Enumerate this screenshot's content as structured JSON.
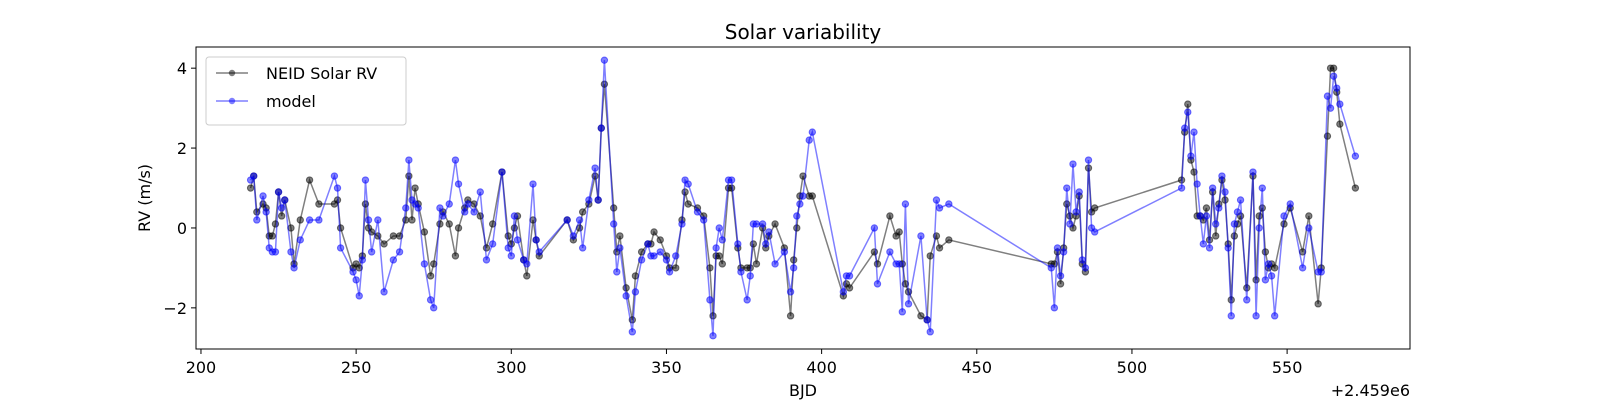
{
  "chart_data": {
    "type": "line",
    "title": "Solar variability",
    "xlabel": "BJD",
    "xoffset_label": "+2.459e6",
    "ylabel": "RV (m/s)",
    "xlim": [
      198.4,
      589.6
    ],
    "xticks": [
      200,
      250,
      300,
      350,
      400,
      450,
      500,
      550
    ],
    "ylim": [
      -3.03,
      4.53
    ],
    "yticks": [
      {
        "value": -2,
        "label": "−2"
      },
      0,
      2,
      4
    ],
    "legend": "upper left",
    "alpha": 0.5,
    "markers": true,
    "x": [
      216,
      217,
      218,
      220,
      221,
      222,
      223,
      224,
      225,
      226,
      227,
      229,
      230,
      232,
      235,
      238,
      243,
      244,
      245,
      249,
      250,
      251,
      252,
      253,
      254,
      255,
      257,
      259,
      262,
      264,
      266,
      267,
      268,
      269,
      270,
      272,
      274,
      275,
      277,
      278,
      280,
      282,
      283,
      285,
      286,
      288,
      290,
      292,
      294,
      297,
      299,
      300,
      301,
      302,
      304,
      305,
      307,
      308,
      309,
      318,
      320,
      322,
      323,
      325,
      327,
      328,
      329,
      330,
      333,
      334,
      335,
      337,
      339,
      340,
      342,
      344,
      345,
      346,
      348,
      350,
      351,
      353,
      355,
      356,
      357,
      360,
      362,
      364,
      365,
      366,
      367,
      368,
      370,
      371,
      373,
      374,
      376,
      377,
      378,
      379,
      381,
      382,
      383,
      385,
      388,
      390,
      391,
      392,
      393,
      394,
      396,
      397,
      407,
      408,
      409,
      417,
      418,
      422,
      424,
      425,
      426,
      427,
      428,
      432,
      434,
      435,
      437,
      438,
      441,
      474,
      475,
      476,
      477,
      478,
      479,
      480,
      481,
      482,
      483,
      484,
      485,
      486,
      487,
      488,
      516,
      517,
      518,
      519,
      520,
      521,
      522,
      523,
      524,
      525,
      526,
      527,
      528,
      529,
      530,
      531,
      532,
      533,
      534,
      535,
      537,
      539,
      540,
      541,
      542,
      543,
      544,
      545,
      546,
      549,
      551,
      555,
      557,
      560,
      561,
      563,
      564,
      565,
      566,
      567,
      572
    ],
    "series": [
      {
        "name": "NEID Solar RV",
        "color": "#000000",
        "values": [
          1.0,
          1.3,
          0.4,
          0.6,
          0.5,
          -0.2,
          -0.2,
          0.1,
          0.9,
          0.3,
          0.7,
          0.0,
          -0.9,
          0.2,
          1.2,
          0.6,
          0.6,
          0.7,
          0.0,
          -1.0,
          -0.9,
          -1.0,
          -0.7,
          0.6,
          0.0,
          -0.1,
          -0.2,
          -0.4,
          -0.2,
          -0.2,
          0.2,
          1.3,
          0.2,
          1.0,
          0.6,
          -0.1,
          -1.2,
          -0.9,
          0.1,
          0.4,
          0.1,
          -0.7,
          0.0,
          0.5,
          0.7,
          0.6,
          0.3,
          -0.5,
          0.1,
          1.4,
          -0.2,
          -0.4,
          0.0,
          0.3,
          -0.8,
          -1.2,
          0.2,
          -0.3,
          -0.7,
          0.2,
          -0.3,
          0.0,
          0.4,
          0.6,
          1.3,
          0.7,
          2.5,
          3.6,
          0.5,
          -0.6,
          -0.2,
          -1.5,
          -2.3,
          -1.2,
          -0.6,
          -0.4,
          -0.4,
          -0.1,
          -0.3,
          -0.7,
          -1.0,
          -1.0,
          0.2,
          0.9,
          0.6,
          0.5,
          0.3,
          -1.0,
          -2.2,
          -0.7,
          -0.7,
          -0.9,
          1.0,
          1.0,
          -0.5,
          -1.0,
          -1.0,
          -1.0,
          -0.4,
          -0.9,
          0.0,
          -0.5,
          -0.2,
          0.1,
          -0.5,
          -2.2,
          -0.8,
          0.0,
          0.8,
          1.3,
          0.8,
          0.8,
          -1.7,
          -1.4,
          -1.5,
          -0.6,
          -0.9,
          0.3,
          -0.2,
          -0.1,
          -0.9,
          -1.4,
          -1.6,
          -2.2,
          -2.3,
          -0.7,
          -0.2,
          -0.5,
          -0.3,
          -0.9,
          -0.9,
          -0.6,
          -1.4,
          -0.5,
          0.6,
          0.3,
          0.0,
          0.3,
          0.8,
          -0.9,
          -1.1,
          1.5,
          0.4,
          0.5,
          1.2,
          2.4,
          3.1,
          1.7,
          1.4,
          0.3,
          0.3,
          0.2,
          0.5,
          -0.3,
          0.9,
          -0.2,
          0.6,
          1.2,
          0.7,
          -0.4,
          -1.8,
          -0.2,
          0.1,
          0.3,
          -1.5,
          1.3,
          -1.3,
          0.3,
          0.5,
          -0.6,
          -1.0,
          -0.9,
          -1.0,
          0.1,
          0.5,
          -0.6,
          0.3,
          -1.9,
          -1.0,
          2.3,
          4.0,
          4.0,
          3.4,
          2.6,
          1.0
        ]
      },
      {
        "name": "model",
        "color": "#0000ff",
        "values": [
          1.2,
          1.3,
          0.2,
          0.8,
          0.4,
          -0.5,
          -0.6,
          -0.6,
          0.9,
          0.5,
          0.7,
          -0.6,
          -1.0,
          -0.3,
          0.2,
          0.2,
          1.3,
          1.0,
          -0.5,
          -1.1,
          -1.3,
          -1.7,
          -0.8,
          1.2,
          0.2,
          -0.6,
          0.2,
          -1.6,
          -0.8,
          -0.6,
          0.5,
          1.7,
          0.7,
          0.6,
          0.5,
          -0.9,
          -1.8,
          -2.0,
          0.5,
          0.3,
          0.6,
          1.7,
          1.1,
          0.4,
          0.6,
          0.4,
          0.9,
          -0.8,
          -0.4,
          1.4,
          -0.5,
          -0.7,
          0.3,
          -0.3,
          -0.8,
          -0.9,
          1.1,
          -0.3,
          -0.6,
          0.2,
          -0.2,
          0.2,
          -0.5,
          0.7,
          1.5,
          0.7,
          2.5,
          4.2,
          0.1,
          -1.1,
          -0.5,
          -1.7,
          -2.6,
          -1.6,
          -0.8,
          -0.4,
          -0.7,
          -0.7,
          -0.6,
          -0.8,
          -1.1,
          -0.7,
          0.1,
          1.2,
          1.1,
          0.4,
          0.2,
          -1.8,
          -2.7,
          -0.5,
          0.0,
          -0.3,
          1.2,
          1.2,
          -0.4,
          -1.1,
          -1.8,
          -1.2,
          0.1,
          0.1,
          0.1,
          -0.4,
          -0.1,
          -0.9,
          -0.6,
          -1.6,
          -1.0,
          0.3,
          0.6,
          0.8,
          2.2,
          2.4,
          -1.6,
          -1.2,
          -1.2,
          0.0,
          -1.4,
          -0.6,
          -0.9,
          -0.9,
          -2.1,
          0.6,
          -1.9,
          -0.2,
          -2.3,
          -2.6,
          0.7,
          0.5,
          0.6,
          -1.0,
          -2.0,
          -0.5,
          -1.2,
          -0.6,
          1.0,
          0.1,
          1.6,
          0.4,
          0.9,
          -0.8,
          -1.0,
          1.7,
          0.0,
          -0.1,
          1.0,
          2.5,
          2.9,
          1.8,
          2.4,
          1.1,
          0.3,
          -0.4,
          0.3,
          -0.5,
          1.0,
          0.1,
          0.5,
          1.3,
          0.9,
          -0.5,
          -2.2,
          0.1,
          0.4,
          0.7,
          -1.8,
          1.4,
          -2.2,
          0.0,
          1.0,
          -1.3,
          -0.9,
          -1.2,
          -2.2,
          0.3,
          0.6,
          -1.0,
          0.0,
          -1.1,
          -1.1,
          3.3,
          3.0,
          3.8,
          3.5,
          3.1,
          1.8
        ]
      }
    ]
  }
}
